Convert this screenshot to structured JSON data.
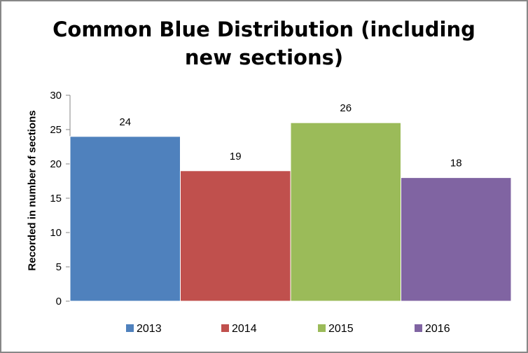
{
  "chart_data": {
    "type": "bar",
    "title": [
      "Common Blue Distribution (including",
      "new sections)"
    ],
    "xlabel": "",
    "ylabel": "Recorded in number of sections",
    "ylim": [
      0,
      30
    ],
    "yticks": [
      0,
      5,
      10,
      15,
      20,
      25,
      30
    ],
    "categories": [
      "2013",
      "2014",
      "2015",
      "2016"
    ],
    "values": [
      24,
      19,
      26,
      18
    ],
    "colors": [
      "#4F81BD",
      "#C0504D",
      "#9BBB59",
      "#8064A2"
    ],
    "data_labels": true,
    "grid": false,
    "legend": "bottom"
  }
}
